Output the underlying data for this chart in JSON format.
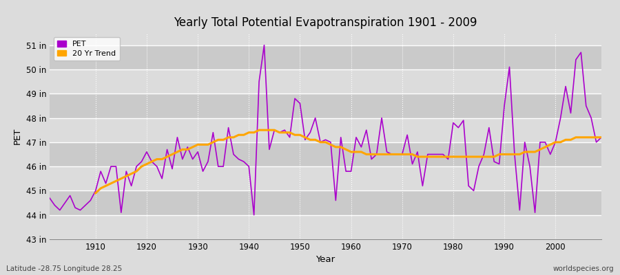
{
  "title": "Yearly Total Potential Evapotranspiration 1901 - 2009",
  "xlabel": "Year",
  "ylabel": "PET",
  "subtitle": "Latitude -28.75 Longitude 28.25",
  "watermark": "worldspecies.org",
  "pet_color": "#aa00cc",
  "trend_color": "#FFA500",
  "bg_light": "#dcdcdc",
  "bg_dark": "#cacaca",
  "ylim": [
    43,
    51.5
  ],
  "yticks": [
    43,
    44,
    45,
    46,
    47,
    48,
    49,
    50,
    51
  ],
  "years": [
    1901,
    1902,
    1903,
    1904,
    1905,
    1906,
    1907,
    1908,
    1909,
    1910,
    1911,
    1912,
    1913,
    1914,
    1915,
    1916,
    1917,
    1918,
    1919,
    1920,
    1921,
    1922,
    1923,
    1924,
    1925,
    1926,
    1927,
    1928,
    1929,
    1930,
    1931,
    1932,
    1933,
    1934,
    1935,
    1936,
    1937,
    1938,
    1939,
    1940,
    1941,
    1942,
    1943,
    1944,
    1945,
    1946,
    1947,
    1948,
    1949,
    1950,
    1951,
    1952,
    1953,
    1954,
    1955,
    1956,
    1957,
    1958,
    1959,
    1960,
    1961,
    1962,
    1963,
    1964,
    1965,
    1966,
    1967,
    1968,
    1969,
    1970,
    1971,
    1972,
    1973,
    1974,
    1975,
    1976,
    1977,
    1978,
    1979,
    1980,
    1981,
    1982,
    1983,
    1984,
    1985,
    1986,
    1987,
    1988,
    1989,
    1990,
    1991,
    1992,
    1993,
    1994,
    1995,
    1996,
    1997,
    1998,
    1999,
    2000,
    2001,
    2002,
    2003,
    2004,
    2005,
    2006,
    2007,
    2008,
    2009
  ],
  "pet_values": [
    44.7,
    44.4,
    44.2,
    44.5,
    44.8,
    44.3,
    44.2,
    44.4,
    44.6,
    45.0,
    45.8,
    45.3,
    46.0,
    46.0,
    44.1,
    45.8,
    45.2,
    46.0,
    46.2,
    46.6,
    46.2,
    46.0,
    45.5,
    46.7,
    45.9,
    47.2,
    46.3,
    46.8,
    46.3,
    46.6,
    45.8,
    46.2,
    47.4,
    46.0,
    46.0,
    47.6,
    46.5,
    46.3,
    46.2,
    46.0,
    44.0,
    49.5,
    51.0,
    46.7,
    47.5,
    47.4,
    47.5,
    47.2,
    48.8,
    48.6,
    47.1,
    47.4,
    48.0,
    47.0,
    47.1,
    47.0,
    44.6,
    47.2,
    45.8,
    45.8,
    47.2,
    46.8,
    47.5,
    46.3,
    46.5,
    48.0,
    46.6,
    46.5,
    46.5,
    46.5,
    47.3,
    46.1,
    46.6,
    45.2,
    46.5,
    46.5,
    46.5,
    46.5,
    46.3,
    47.8,
    47.6,
    47.9,
    45.2,
    45.0,
    46.0,
    46.5,
    47.6,
    46.2,
    46.1,
    48.5,
    50.1,
    46.5,
    44.2,
    47.0,
    46.0,
    44.1,
    47.0,
    47.0,
    46.5,
    47.0,
    48.0,
    49.3,
    48.2,
    50.4,
    50.7,
    48.5,
    48.0,
    47.0,
    47.2
  ],
  "trend_values": [
    null,
    null,
    null,
    null,
    null,
    null,
    null,
    null,
    null,
    44.9,
    45.1,
    45.2,
    45.3,
    45.4,
    45.5,
    45.6,
    45.7,
    45.8,
    46.0,
    46.1,
    46.2,
    46.3,
    46.3,
    46.4,
    46.5,
    46.6,
    46.7,
    46.7,
    46.8,
    46.9,
    46.9,
    46.9,
    47.0,
    47.1,
    47.1,
    47.2,
    47.2,
    47.3,
    47.3,
    47.4,
    47.4,
    47.5,
    47.5,
    47.5,
    47.5,
    47.4,
    47.4,
    47.4,
    47.3,
    47.3,
    47.2,
    47.1,
    47.1,
    47.0,
    47.0,
    46.9,
    46.8,
    46.8,
    46.7,
    46.6,
    46.6,
    46.6,
    46.5,
    46.5,
    46.5,
    46.5,
    46.5,
    46.5,
    46.5,
    46.5,
    46.5,
    46.5,
    46.4,
    46.4,
    46.4,
    46.4,
    46.4,
    46.4,
    46.4,
    46.4,
    46.4,
    46.4,
    46.4,
    46.4,
    46.4,
    46.4,
    46.4,
    46.4,
    46.5,
    46.5,
    46.5,
    46.5,
    46.5,
    46.6,
    46.6,
    46.6,
    46.7,
    46.8,
    46.9,
    47.0,
    47.0,
    47.1,
    47.1,
    47.2,
    47.2,
    47.2,
    47.2,
    47.2,
    47.2
  ]
}
